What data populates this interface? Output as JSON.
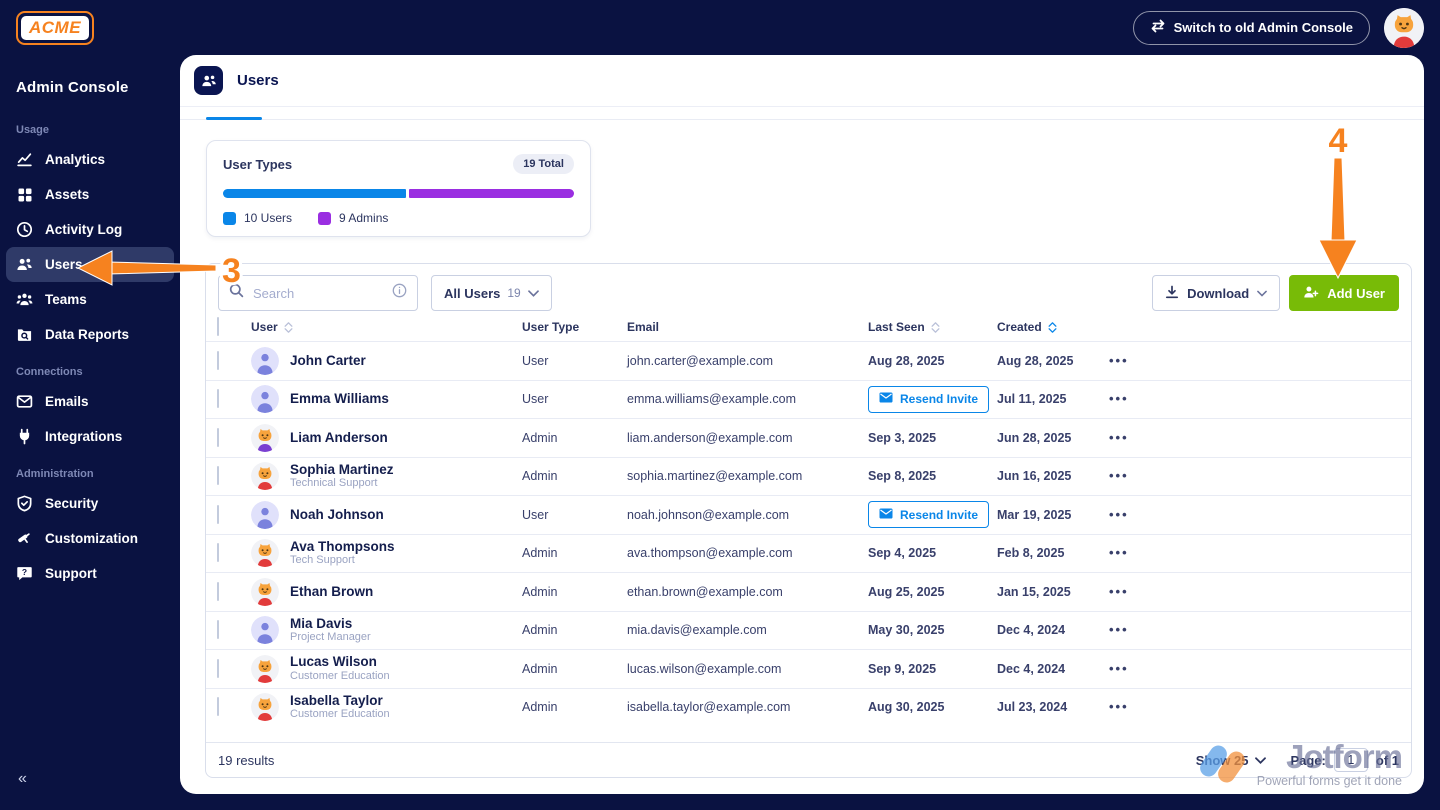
{
  "topbar": {
    "logo_text": "ACME",
    "switch_button_label": "Switch to old Admin Console"
  },
  "sidebar": {
    "title": "Admin Console",
    "active_item": "Users",
    "collapse_glyph": "«",
    "sections": [
      {
        "label": "Usage",
        "items": [
          {
            "label": "Analytics",
            "icon": "analytics-icon"
          },
          {
            "label": "Assets",
            "icon": "assets-icon"
          },
          {
            "label": "Activity Log",
            "icon": "activity-log-icon"
          },
          {
            "label": "Users",
            "icon": "users-icon"
          },
          {
            "label": "Teams",
            "icon": "teams-icon"
          },
          {
            "label": "Data Reports",
            "icon": "data-reports-icon"
          }
        ]
      },
      {
        "label": "Connections",
        "items": [
          {
            "label": "Emails",
            "icon": "emails-icon"
          },
          {
            "label": "Integrations",
            "icon": "integrations-icon"
          }
        ]
      },
      {
        "label": "Administration",
        "items": [
          {
            "label": "Security",
            "icon": "security-icon"
          },
          {
            "label": "Customization",
            "icon": "customization-icon"
          },
          {
            "label": "Support",
            "icon": "support-icon"
          }
        ]
      }
    ]
  },
  "header": {
    "title": "Users"
  },
  "summary": {
    "title": "User Types",
    "total_badge": "19 Total",
    "users_count": 10,
    "admins_count": 9,
    "users_color": "#0a86e8",
    "admins_color": "#9a2ee1",
    "legend": [
      {
        "label": "10 Users",
        "color": "#0a86e8"
      },
      {
        "label": "9 Admins",
        "color": "#9a2ee1"
      }
    ]
  },
  "toolbar": {
    "search_placeholder": "Search",
    "filter_label": "All Users",
    "filter_count": "19",
    "download_label": "Download",
    "add_user_label": "Add User"
  },
  "table": {
    "columns": [
      {
        "label": "User",
        "sortable": true,
        "active": false
      },
      {
        "label": "User Type",
        "sortable": false,
        "active": false
      },
      {
        "label": "Email",
        "sortable": false,
        "active": false
      },
      {
        "label": "Last Seen",
        "sortable": true,
        "active": false
      },
      {
        "label": "Created",
        "sortable": true,
        "active": true
      }
    ],
    "resend_invite_label": "Resend Invite",
    "rows": [
      {
        "name": "John Carter",
        "subtitle": "",
        "avatar": "person",
        "type": "User",
        "email": "john.carter@example.com",
        "last_seen": "Aug 28, 2025",
        "resend_invite": false,
        "created": "Aug 28, 2025"
      },
      {
        "name": "Emma Williams",
        "subtitle": "",
        "avatar": "person",
        "type": "User",
        "email": "emma.williams@example.com",
        "last_seen": "",
        "resend_invite": true,
        "created": "Jul 11, 2025"
      },
      {
        "name": "Liam Anderson",
        "subtitle": "",
        "avatar": "cat-purple",
        "type": "Admin",
        "email": "liam.anderson@example.com",
        "last_seen": "Sep 3, 2025",
        "resend_invite": false,
        "created": "Jun 28, 2025"
      },
      {
        "name": "Sophia Martinez",
        "subtitle": "Technical Support",
        "avatar": "cat-red",
        "type": "Admin",
        "email": "sophia.martinez@example.com",
        "last_seen": "Sep 8, 2025",
        "resend_invite": false,
        "created": "Jun 16, 2025"
      },
      {
        "name": "Noah Johnson",
        "subtitle": "",
        "avatar": "person",
        "type": "User",
        "email": "noah.johnson@example.com",
        "last_seen": "",
        "resend_invite": true,
        "created": "Mar 19, 2025"
      },
      {
        "name": "Ava Thompsons",
        "subtitle": "Tech Support",
        "avatar": "cat-red",
        "type": "Admin",
        "email": "ava.thompson@example.com",
        "last_seen": "Sep 4, 2025",
        "resend_invite": false,
        "created": "Feb 8, 2025"
      },
      {
        "name": "Ethan Brown",
        "subtitle": "",
        "avatar": "cat-red",
        "type": "Admin",
        "email": "ethan.brown@example.com",
        "last_seen": "Aug 25, 2025",
        "resend_invite": false,
        "created": "Jan 15, 2025"
      },
      {
        "name": "Mia Davis",
        "subtitle": "Project Manager",
        "avatar": "person",
        "type": "Admin",
        "email": "mia.davis@example.com",
        "last_seen": "May 30, 2025",
        "resend_invite": false,
        "created": "Dec 4, 2024"
      },
      {
        "name": "Lucas Wilson",
        "subtitle": "Customer Education",
        "avatar": "cat-red",
        "type": "Admin",
        "email": "lucas.wilson@example.com",
        "last_seen": "Sep 9, 2025",
        "resend_invite": false,
        "created": "Dec 4, 2024"
      },
      {
        "name": "Isabella Taylor",
        "subtitle": "Customer Education",
        "avatar": "cat-red",
        "type": "Admin",
        "email": "isabella.taylor@example.com",
        "last_seen": "Aug 30, 2025",
        "resend_invite": false,
        "created": "Jul 23, 2024"
      }
    ]
  },
  "panel_footer": {
    "results": "19 results",
    "show_label": "Show 25",
    "page_label": "Page:",
    "page_value": "1",
    "page_of": "of 1"
  },
  "watermark": {
    "brand": "Jotform",
    "tagline": "Powerful forms get it done"
  },
  "annotations": {
    "step_users": "3",
    "step_add_user": "4",
    "color": "#f6821f"
  }
}
